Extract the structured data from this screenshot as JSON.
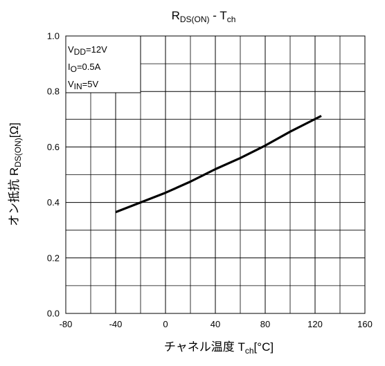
{
  "chart_data": {
    "type": "line",
    "title": {
      "main": "R",
      "sub1": "DS(ON)",
      "mid": " - T",
      "sub2": "ch"
    },
    "xlabel": {
      "main": "チャネル温度 T",
      "sub": "ch",
      "unit": "[°C]"
    },
    "ylabel": {
      "main": "オン抵抗 R",
      "sub": "DS(ON)",
      "unit": "[Ω]"
    },
    "xlim": [
      -80,
      160
    ],
    "ylim": [
      0.0,
      1.0
    ],
    "x_ticks": [
      -80,
      -40,
      0,
      40,
      80,
      120,
      160
    ],
    "x_tick_labels": [
      "-80",
      "-40",
      "0",
      "40",
      "80",
      "120",
      "160"
    ],
    "y_ticks": [
      0.0,
      0.2,
      0.4,
      0.6,
      0.8,
      1.0
    ],
    "y_tick_labels": [
      "0.0",
      "0.2",
      "0.4",
      "0.6",
      "0.8",
      "1.0"
    ],
    "x_minor_step": 20,
    "y_minor_step": 0.1,
    "grid": true,
    "conditions": [
      {
        "main": "V",
        "sub": "DD",
        "rest": "=12V"
      },
      {
        "main": "I",
        "sub": "O",
        "rest": "=0.5A"
      },
      {
        "main": "V",
        "sub": "IN",
        "rest": "=5V"
      }
    ],
    "series": [
      {
        "color": "#000000",
        "x": [
          -40,
          -20,
          0,
          20,
          40,
          60,
          80,
          100,
          125
        ],
        "y": [
          0.365,
          0.4,
          0.435,
          0.475,
          0.52,
          0.56,
          0.605,
          0.655,
          0.712
        ]
      }
    ]
  }
}
